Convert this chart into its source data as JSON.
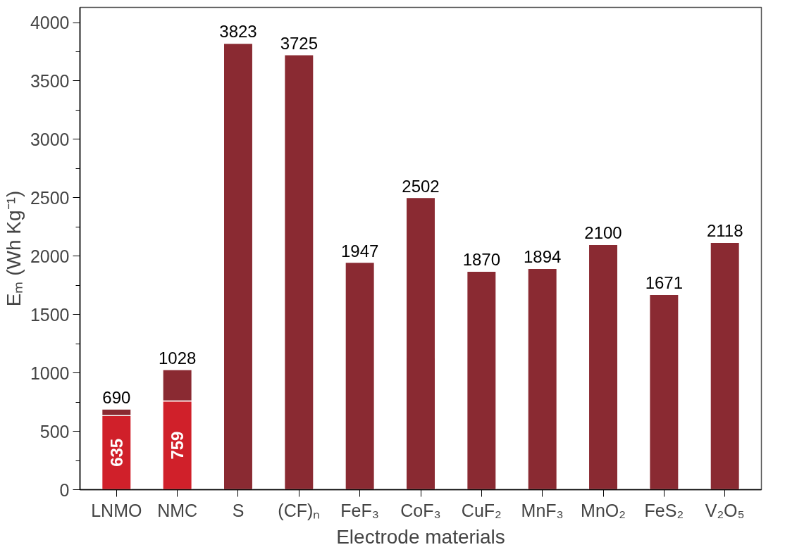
{
  "chart_data": {
    "type": "bar",
    "stacked": true,
    "xlabel": "Electrode materials",
    "ylabel": "Eₘ (Wh Kg⁻¹)",
    "categories": [
      "LNMO",
      "NMC",
      "S",
      "(CF)ₙ",
      "FeF₃",
      "CoF₃",
      "CuF₂",
      "MnF₃",
      "MnO₂",
      "FeS₂",
      "V₂O₅"
    ],
    "series": [
      {
        "color": "#d0202a",
        "values": [
          635,
          759,
          null,
          null,
          null,
          null,
          null,
          null,
          null,
          null,
          null
        ],
        "value_labels": [
          "635",
          "759",
          null,
          null,
          null,
          null,
          null,
          null,
          null,
          null,
          null
        ]
      },
      {
        "color": "#8a2a32",
        "values": [
          55,
          269,
          3823,
          3725,
          1947,
          2502,
          1870,
          1894,
          2100,
          1671,
          2118
        ]
      }
    ],
    "totals": [
      "690",
      "1028",
      "3823",
      "3725",
      "1947",
      "2502",
      "1870",
      "1894",
      "2100",
      "1671",
      "2118"
    ],
    "ylim": [
      0,
      4130
    ],
    "yticks": [
      0,
      500,
      1000,
      1500,
      2000,
      2500,
      3000,
      3500,
      4000
    ],
    "grid": false
  }
}
